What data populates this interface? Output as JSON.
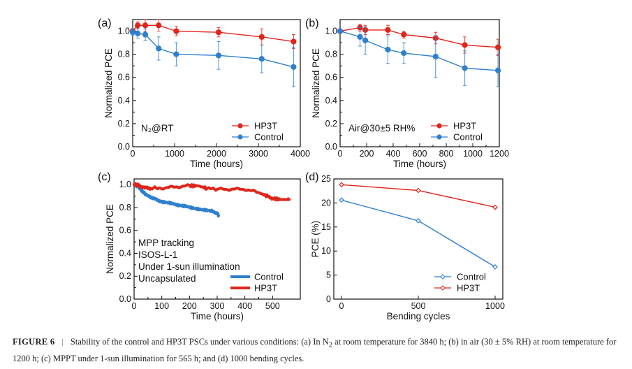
{
  "colors": {
    "red": "#e0251b",
    "blue": "#2f7fcf",
    "axis": "#111111"
  },
  "chart_data": [
    {
      "panel": "(a)",
      "type": "line",
      "title": "",
      "xlabel": "Time (hours)",
      "ylabel": "Normalized PCE",
      "xlim": [
        0,
        4000
      ],
      "ylim": [
        0.0,
        1.1
      ],
      "xticks": [
        0,
        1000,
        2000,
        3000,
        4000
      ],
      "yticks": [
        0.0,
        0.2,
        0.4,
        0.6,
        0.8,
        1.0
      ],
      "annotation": "N₂@RT",
      "legend_position": "lower-right",
      "series": [
        {
          "name": "HP3T",
          "color": "red",
          "x": [
            0,
            120,
            300,
            620,
            1040,
            2050,
            3080,
            3840
          ],
          "y": [
            1.0,
            1.05,
            1.05,
            1.05,
            1.0,
            0.99,
            0.95,
            0.91
          ],
          "err": [
            0.02,
            0.03,
            0.05,
            0.05,
            0.04,
            0.04,
            0.07,
            0.06
          ]
        },
        {
          "name": "Control",
          "color": "blue",
          "x": [
            0,
            120,
            300,
            620,
            1040,
            2050,
            3080,
            3840
          ],
          "y": [
            0.99,
            0.98,
            0.97,
            0.85,
            0.8,
            0.79,
            0.76,
            0.69
          ],
          "err": [
            0.03,
            0.04,
            0.05,
            0.1,
            0.1,
            0.12,
            0.12,
            0.17
          ]
        }
      ]
    },
    {
      "panel": "(b)",
      "type": "line",
      "title": "",
      "xlabel": "Time (hours)",
      "ylabel": "Normalized PCE",
      "xlim": [
        0,
        1200
      ],
      "ylim": [
        0.0,
        1.1
      ],
      "xticks": [
        0,
        200,
        400,
        600,
        800,
        1000,
        1200
      ],
      "yticks": [
        0.0,
        0.2,
        0.4,
        0.6,
        0.8,
        1.0
      ],
      "annotation": "Air@30±5 RH%",
      "legend_position": "lower-right",
      "series": [
        {
          "name": "HP3T",
          "color": "red",
          "x": [
            0,
            150,
            190,
            360,
            480,
            720,
            940,
            1190
          ],
          "y": [
            1.0,
            1.03,
            1.01,
            1.01,
            0.97,
            0.94,
            0.88,
            0.86
          ],
          "err": [
            0.02,
            0.03,
            0.04,
            0.04,
            0.03,
            0.05,
            0.07,
            0.07
          ]
        },
        {
          "name": "Control",
          "color": "blue",
          "x": [
            0,
            150,
            190,
            360,
            480,
            720,
            940,
            1190
          ],
          "y": [
            1.0,
            0.95,
            0.92,
            0.84,
            0.81,
            0.78,
            0.68,
            0.66
          ],
          "err": [
            0.02,
            0.08,
            0.12,
            0.12,
            0.09,
            0.18,
            0.15,
            0.14
          ]
        }
      ]
    },
    {
      "panel": "(c)",
      "type": "line",
      "title": "",
      "xlabel": "Time (hours)",
      "ylabel": "Normalized PCE",
      "xlim": [
        0,
        600
      ],
      "ylim": [
        0.0,
        1.05
      ],
      "xticks": [
        0,
        100,
        200,
        300,
        400,
        500
      ],
      "yticks": [
        0.0,
        0.2,
        0.4,
        0.6,
        0.8,
        1.0
      ],
      "annotations": [
        "MPP tracking",
        "ISOS-L-1",
        "Under 1-sun illumination",
        "Uncapsulated"
      ],
      "legend_position": "lower-right",
      "series": [
        {
          "name": "Control",
          "color": "blue",
          "x": [
            0,
            10,
            20,
            30,
            45,
            60,
            80,
            100,
            130,
            160,
            190,
            220,
            250,
            280,
            300,
            305
          ],
          "y": [
            1.0,
            0.99,
            0.97,
            0.94,
            0.91,
            0.89,
            0.87,
            0.85,
            0.84,
            0.82,
            0.81,
            0.79,
            0.78,
            0.77,
            0.75,
            0.73
          ]
        },
        {
          "name": "HP3T",
          "color": "red",
          "x": [
            0,
            10,
            20,
            40,
            60,
            100,
            150,
            200,
            230,
            260,
            300,
            350,
            400,
            450,
            480,
            500,
            530,
            560
          ],
          "y": [
            1.0,
            1.0,
            0.99,
            0.97,
            0.97,
            0.97,
            0.98,
            0.99,
            0.99,
            0.97,
            0.96,
            0.96,
            0.96,
            0.93,
            0.9,
            0.88,
            0.87,
            0.87
          ]
        }
      ]
    },
    {
      "panel": "(d)",
      "type": "line",
      "title": "",
      "xlabel": "Bending cycles",
      "ylabel": "PCE (%)",
      "xlim": [
        -50,
        1050
      ],
      "ylim": [
        0,
        25
      ],
      "xticks": [
        0,
        500,
        1000
      ],
      "yticks": [
        0,
        5,
        10,
        15,
        20,
        25
      ],
      "legend_position": "lower-right",
      "series": [
        {
          "name": "Control",
          "color": "blue",
          "x": [
            0,
            500,
            1000
          ],
          "y": [
            20.6,
            16.3,
            6.7
          ]
        },
        {
          "name": "HP3T",
          "color": "red",
          "x": [
            0,
            500,
            1000
          ],
          "y": [
            23.8,
            22.6,
            19.1
          ]
        }
      ]
    }
  ],
  "caption": {
    "label": "FIGURE 6",
    "separator": "|",
    "part1": "Stability of the control and HP3T PSCs under various conditions: (a) In N",
    "sub": "2",
    "part2": " at room temperature for 3840 h; (b) in air (30 ± 5% RH) at room temperature for 1200 h; (c) MPPT under 1-sun illumination for 565 h; and (d) 1000 bending cycles."
  }
}
